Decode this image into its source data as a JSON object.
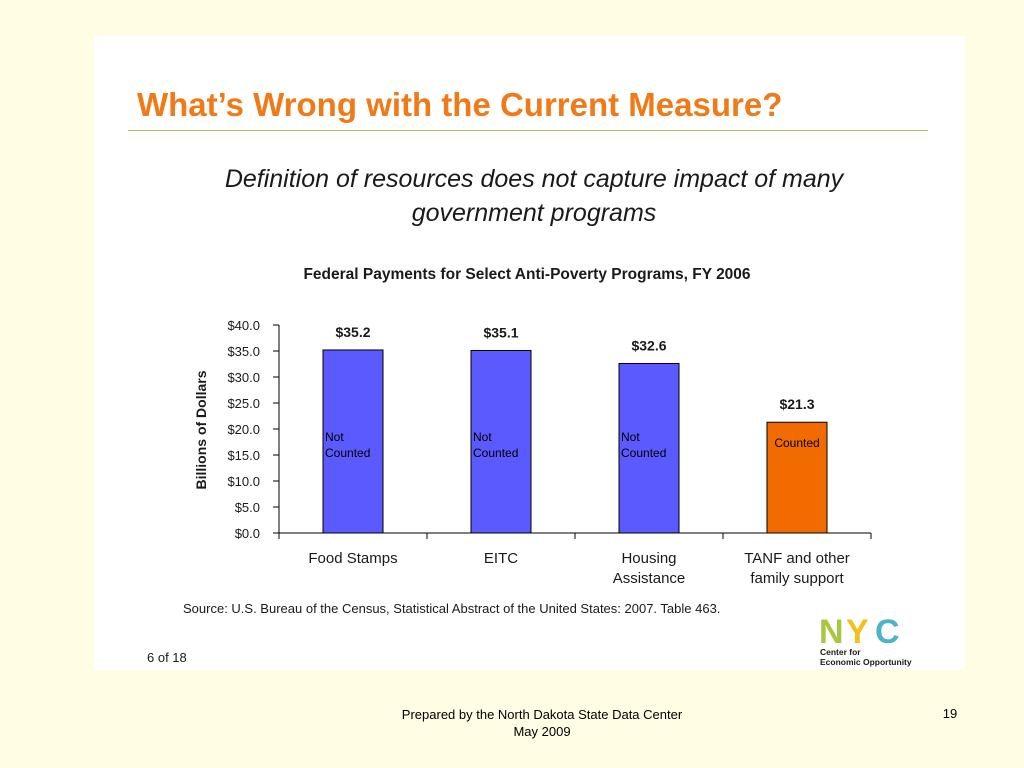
{
  "slide": {
    "title": "What’s Wrong with the Current Measure?",
    "subtitle_line1": "Definition of resources does not capture impact of many",
    "subtitle_line2": "government programs",
    "source": "Source: U.S. Bureau of the Census, Statistical Abstract of the United States: 2007. Table 463.",
    "slide_count": "6 of 18",
    "logo": {
      "letters": "NYC",
      "line1": "Center for",
      "line2": "Economic Opportunity",
      "colors": {
        "n": "#a8c640",
        "y": "#f2c21b",
        "c": "#4fb3c8"
      }
    }
  },
  "footer": {
    "line1": "Prepared by the North Dakota State Data Center",
    "line2": "May 2009",
    "page_number": "19"
  },
  "colors": {
    "title": "#f07a18",
    "bar_not_counted": "#5a5aff",
    "bar_counted": "#f26b00",
    "background": "#fffde3"
  },
  "chart_data": {
    "type": "bar",
    "title": "Federal Payments for Select Anti-Poverty Programs, FY 2006",
    "ylabel": "Billions of Dollars",
    "xlabel": "",
    "ylim": [
      0,
      40
    ],
    "yticks": [
      0,
      5,
      10,
      15,
      20,
      25,
      30,
      35,
      40
    ],
    "ytick_labels": [
      "$0.0",
      "$5.0",
      "$10.0",
      "$15.0",
      "$20.0",
      "$25.0",
      "$30.0",
      "$35.0",
      "$40.0"
    ],
    "grid": false,
    "categories": [
      [
        "Food Stamps"
      ],
      [
        "EITC"
      ],
      [
        "Housing",
        "Assistance"
      ],
      [
        "TANF and other",
        "family support"
      ]
    ],
    "values": [
      35.2,
      35.1,
      32.6,
      21.3
    ],
    "value_labels": [
      "$35.2",
      "$35.1",
      "$32.6",
      "$21.3"
    ],
    "bar_labels": [
      [
        "Not",
        "Counted"
      ],
      [
        "Not",
        "Counted"
      ],
      [
        "Not",
        "Counted"
      ],
      [
        "Counted"
      ]
    ],
    "bar_colors": [
      "#5a5aff",
      "#5a5aff",
      "#5a5aff",
      "#f26b00"
    ]
  }
}
